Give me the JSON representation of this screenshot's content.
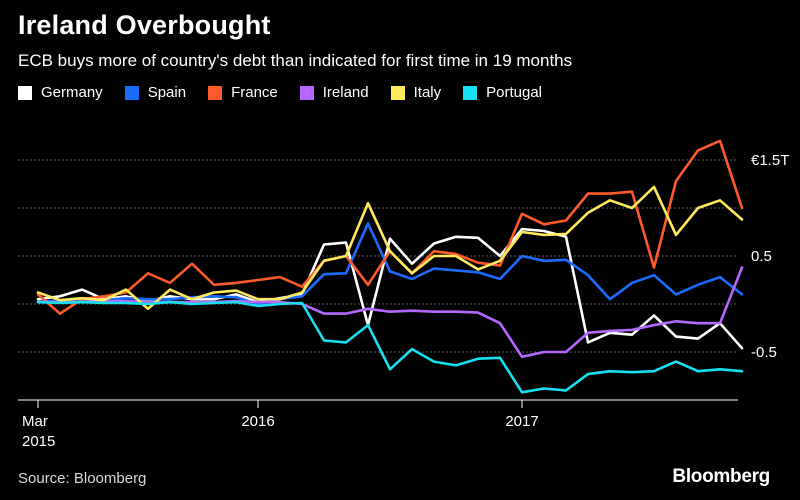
{
  "title": "Ireland Overbought",
  "subtitle": "ECB buys more of country's debt than indicated for first time in 19 months",
  "source": "Source: Bloomberg",
  "brand": "Bloomberg",
  "chart_data": {
    "type": "line",
    "grid": true,
    "legend_placement": "top-left",
    "y_tick_labels": [
      {
        "value": 1.5,
        "label": "€1.5T"
      },
      {
        "value": 1.0,
        "label": ""
      },
      {
        "value": 0.5,
        "label": "0.5"
      },
      {
        "value": 0.0,
        "label": ""
      },
      {
        "value": -0.5,
        "label": "-0.5"
      }
    ],
    "ylim": [
      -0.95,
      1.75
    ],
    "x_ticks": [
      {
        "index": 0,
        "label": "Mar",
        "sublabel": "2015"
      },
      {
        "index": 10,
        "label": "2016",
        "sublabel": ""
      },
      {
        "index": 22,
        "label": "2017",
        "sublabel": ""
      }
    ],
    "x_index_range": [
      0,
      31
    ],
    "series": [
      {
        "name": "Germany",
        "color": "#ffffff",
        "values": [
          0.05,
          0.08,
          0.15,
          0.05,
          0.08,
          0.03,
          0.08,
          0.05,
          0.05,
          0.1,
          0.02,
          0.06,
          0.1,
          0.62,
          0.64,
          -0.22,
          0.68,
          0.42,
          0.63,
          0.7,
          0.69,
          0.5,
          0.78,
          0.76,
          0.7,
          -0.4,
          -0.3,
          -0.32,
          -0.12,
          -0.34,
          -0.36,
          -0.2,
          -0.46
        ]
      },
      {
        "name": "Spain",
        "color": "#1a6cff",
        "values": [
          0.02,
          0.04,
          0.05,
          0.04,
          0.06,
          0.05,
          0.05,
          0.07,
          0.08,
          0.07,
          0.0,
          0.05,
          0.08,
          0.31,
          0.32,
          0.84,
          0.34,
          0.26,
          0.37,
          0.35,
          0.33,
          0.26,
          0.5,
          0.45,
          0.46,
          0.3,
          0.05,
          0.22,
          0.3,
          0.1,
          0.2,
          0.28,
          0.1
        ]
      },
      {
        "name": "France",
        "color": "#ff5a2a",
        "values": [
          0.1,
          -0.1,
          0.05,
          0.08,
          0.12,
          0.32,
          0.22,
          0.42,
          0.2,
          0.22,
          0.25,
          0.28,
          0.18,
          0.45,
          0.5,
          0.2,
          0.55,
          0.32,
          0.55,
          0.52,
          0.43,
          0.4,
          0.94,
          0.83,
          0.87,
          1.15,
          1.15,
          1.17,
          0.38,
          1.28,
          1.6,
          1.7,
          1.0
        ]
      },
      {
        "name": "Ireland",
        "color": "#b468ff",
        "values": [
          0.02,
          0.02,
          0.02,
          0.03,
          0.03,
          0.02,
          0.02,
          0.02,
          0.02,
          0.03,
          0.02,
          0.02,
          0.0,
          -0.1,
          -0.1,
          -0.05,
          -0.08,
          -0.07,
          -0.08,
          -0.08,
          -0.09,
          -0.2,
          -0.55,
          -0.5,
          -0.5,
          -0.3,
          -0.28,
          -0.27,
          -0.22,
          -0.18,
          -0.2,
          -0.2,
          0.38
        ]
      },
      {
        "name": "Italy",
        "color": "#ffea5c",
        "values": [
          0.12,
          0.04,
          0.06,
          0.04,
          0.15,
          -0.05,
          0.15,
          0.05,
          0.12,
          0.14,
          0.05,
          0.05,
          0.12,
          0.45,
          0.5,
          1.05,
          0.55,
          0.32,
          0.5,
          0.5,
          0.36,
          0.45,
          0.75,
          0.72,
          0.73,
          0.95,
          1.08,
          1.0,
          1.22,
          0.72,
          1.0,
          1.08,
          0.88
        ]
      },
      {
        "name": "Portugal",
        "color": "#17e0f2",
        "values": [
          0.02,
          0.01,
          0.02,
          0.01,
          0.01,
          0.0,
          0.02,
          0.0,
          0.01,
          0.02,
          -0.02,
          0.0,
          0.01,
          -0.38,
          -0.4,
          -0.22,
          -0.68,
          -0.47,
          -0.6,
          -0.64,
          -0.57,
          -0.56,
          -0.92,
          -0.88,
          -0.9,
          -0.73,
          -0.7,
          -0.71,
          -0.7,
          -0.6,
          -0.7,
          -0.68,
          -0.7
        ]
      }
    ]
  }
}
